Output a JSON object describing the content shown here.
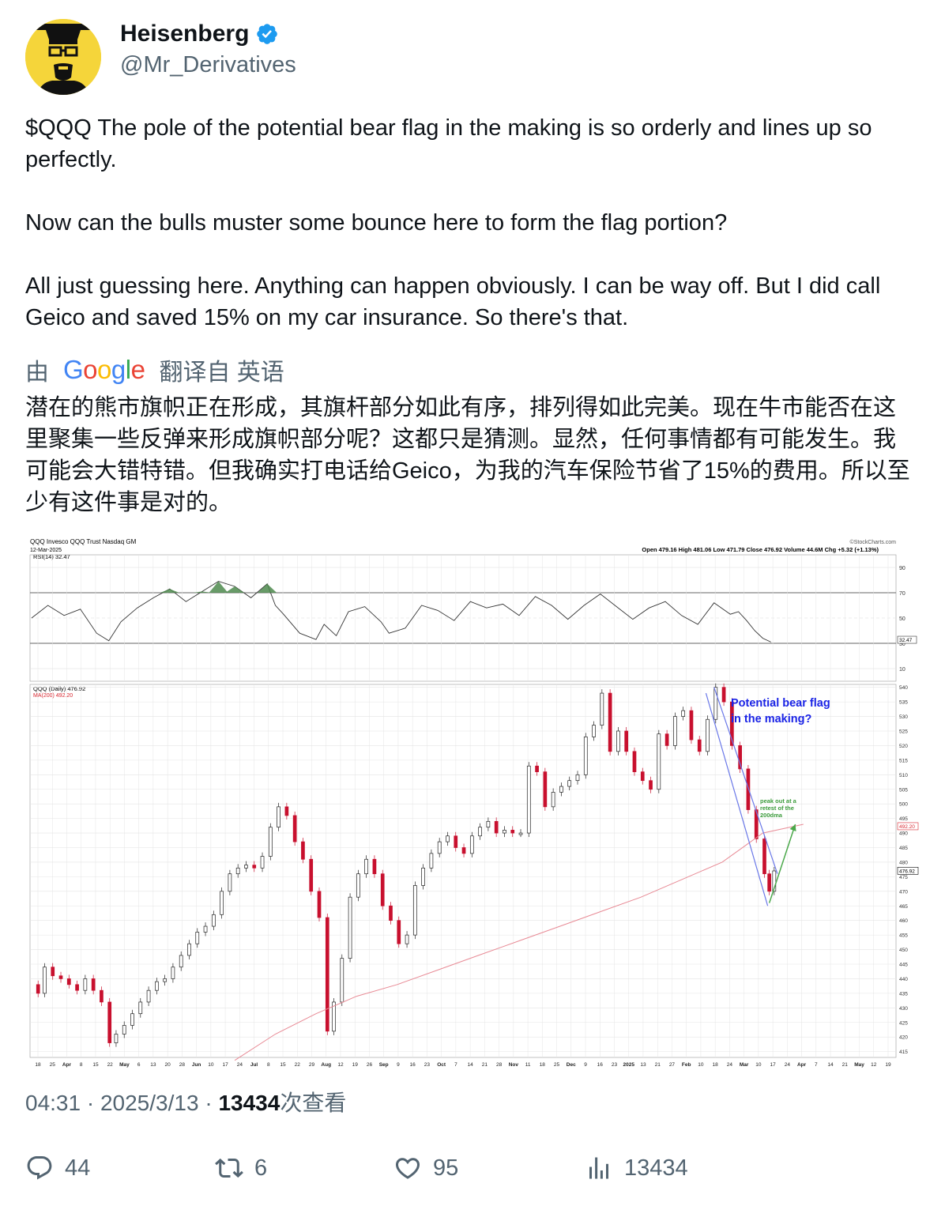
{
  "author": {
    "name": "Heisenberg",
    "handle": "@Mr_Derivatives",
    "verified_icon": "verified-badge-icon",
    "accent": "#1d9bf0"
  },
  "tweet": {
    "p1": "$QQQ The pole of the potential bear flag in the making is so orderly and lines up so perfectly.",
    "p2": "Now can the bulls muster some bounce here to form the flag portion?",
    "p3": "All just guessing here. Anything can happen obviously. I can be way off. But I did call Geico and saved 15% on my car insurance. So there's that."
  },
  "translation": {
    "prefix": "由",
    "provider": "Google",
    "suffix": "翻译自 英语",
    "text": "潜在的熊市旗帜正在形成，其旗杆部分如此有序，排列得如此完美。现在牛市能否在这里聚集一些反弹来形成旗帜部分呢？这都只是猜测。显然，任何事情都有可能发生。我可能会大错特错。但我确实打电话给Geico，为我的汽车保险节省了15%的费用。所以至少有这件事是对的。"
  },
  "meta": {
    "time": "04:31",
    "date": "2025/3/13",
    "views": "13434",
    "views_label": "次查看",
    "sep": "·"
  },
  "actions": {
    "replies": "44",
    "reposts": "6",
    "likes": "95",
    "views": "13434"
  },
  "chart_data": {
    "type": "line",
    "title": "QQQ Invesco QQQ Trust Nasdaq GM",
    "date_label": "12-Mar-2025",
    "source": "©StockCharts.com",
    "ohlc_label": "Open 479.16  High 481.06  Low 471.79  Close 476.92  Volume 44.6M  Chg +5.32 (+1.13%)",
    "rsi_label": "RSI(14) 32.47",
    "price_label": "QQQ (Daily) 476.92",
    "ma_label": "MA(200) 492.20",
    "annotation_main": [
      "Potential bear flag",
      "in the making?"
    ],
    "annotation_small": [
      "peak out at a",
      "retest of the",
      "200dma"
    ],
    "rsi_ticks": [
      "90",
      "70",
      "50",
      "30",
      "10"
    ],
    "rsi_value_tag": "32.47",
    "price_ticks": [
      "540",
      "535",
      "530",
      "525",
      "520",
      "515",
      "510",
      "505",
      "500",
      "495",
      "490",
      "485",
      "480",
      "475",
      "470",
      "465",
      "460",
      "455",
      "450",
      "445",
      "440",
      "435",
      "430",
      "425",
      "420",
      "415"
    ],
    "ma_tag": "492.20",
    "close_tag": "476.92",
    "x_ticks": [
      "18",
      "25",
      "Apr",
      "8",
      "15",
      "22",
      "May",
      "6",
      "13",
      "20",
      "28",
      "Jun",
      "10",
      "17",
      "24",
      "Jul",
      "8",
      "15",
      "22",
      "29",
      "Aug",
      "12",
      "19",
      "26",
      "Sep",
      "9",
      "16",
      "23",
      "Oct",
      "7",
      "14",
      "21",
      "28",
      "Nov",
      "11",
      "18",
      "25",
      "Dec",
      "9",
      "16",
      "23",
      "2025",
      "13",
      "21",
      "27",
      "Feb",
      "10",
      "18",
      "24",
      "Mar",
      "10",
      "17",
      "24",
      "Apr",
      "7",
      "14",
      "21",
      "May",
      "12",
      "19"
    ],
    "ylim": [
      413,
      541
    ],
    "rsi_lim": [
      0,
      100
    ],
    "price_series": [
      [
        0,
        438
      ],
      [
        8,
        435
      ],
      [
        16,
        444
      ],
      [
        26,
        441
      ],
      [
        36,
        440
      ],
      [
        46,
        438
      ],
      [
        56,
        436
      ],
      [
        66,
        440
      ],
      [
        76,
        436
      ],
      [
        86,
        432
      ],
      [
        96,
        418
      ],
      [
        104,
        421
      ],
      [
        114,
        424
      ],
      [
        124,
        428
      ],
      [
        134,
        432
      ],
      [
        144,
        436
      ],
      [
        154,
        439
      ],
      [
        164,
        440
      ],
      [
        174,
        444
      ],
      [
        184,
        448
      ],
      [
        194,
        452
      ],
      [
        204,
        456
      ],
      [
        214,
        458
      ],
      [
        224,
        462
      ],
      [
        234,
        470
      ],
      [
        244,
        476
      ],
      [
        254,
        478
      ],
      [
        264,
        479
      ],
      [
        274,
        478
      ],
      [
        284,
        482
      ],
      [
        294,
        492
      ],
      [
        304,
        499
      ],
      [
        314,
        496
      ],
      [
        324,
        487
      ],
      [
        334,
        481
      ],
      [
        344,
        470
      ],
      [
        354,
        461
      ],
      [
        364,
        422
      ],
      [
        372,
        432
      ],
      [
        382,
        447
      ],
      [
        392,
        468
      ],
      [
        402,
        476
      ],
      [
        412,
        481
      ],
      [
        422,
        476
      ],
      [
        432,
        465
      ],
      [
        442,
        460
      ],
      [
        452,
        452
      ],
      [
        462,
        455
      ],
      [
        472,
        472
      ],
      [
        482,
        478
      ],
      [
        492,
        483
      ],
      [
        502,
        487
      ],
      [
        512,
        489
      ],
      [
        522,
        485
      ],
      [
        532,
        483
      ],
      [
        542,
        489
      ],
      [
        552,
        492
      ],
      [
        562,
        494
      ],
      [
        572,
        490
      ],
      [
        582,
        491
      ],
      [
        592,
        490
      ],
      [
        602,
        490
      ],
      [
        612,
        513
      ],
      [
        622,
        511
      ],
      [
        632,
        499
      ],
      [
        642,
        504
      ],
      [
        652,
        506
      ],
      [
        662,
        508
      ],
      [
        672,
        510
      ],
      [
        682,
        523
      ],
      [
        692,
        527
      ],
      [
        702,
        538
      ],
      [
        712,
        518
      ],
      [
        722,
        525
      ],
      [
        732,
        518
      ],
      [
        742,
        511
      ],
      [
        752,
        508
      ],
      [
        762,
        505
      ],
      [
        772,
        524
      ],
      [
        782,
        520
      ],
      [
        792,
        530
      ],
      [
        802,
        532
      ],
      [
        812,
        522
      ],
      [
        822,
        518
      ],
      [
        832,
        529
      ],
      [
        842,
        540
      ],
      [
        852,
        535
      ],
      [
        862,
        520
      ],
      [
        872,
        512
      ],
      [
        882,
        498
      ],
      [
        892,
        488
      ],
      [
        902,
        476
      ],
      [
        908,
        470
      ],
      [
        914,
        477
      ]
    ],
    "ma_series": [
      [
        250,
        412
      ],
      [
        300,
        421
      ],
      [
        350,
        428
      ],
      [
        400,
        434
      ],
      [
        450,
        438
      ],
      [
        500,
        443
      ],
      [
        550,
        448
      ],
      [
        600,
        453
      ],
      [
        650,
        458
      ],
      [
        700,
        463
      ],
      [
        750,
        468
      ],
      [
        800,
        474
      ],
      [
        850,
        480
      ],
      [
        880,
        486
      ],
      [
        900,
        490
      ],
      [
        950,
        493
      ]
    ],
    "rsi_series": [
      [
        0,
        50
      ],
      [
        20,
        60
      ],
      [
        40,
        52
      ],
      [
        60,
        57
      ],
      [
        80,
        38
      ],
      [
        95,
        32
      ],
      [
        110,
        47
      ],
      [
        130,
        58
      ],
      [
        150,
        66
      ],
      [
        170,
        73
      ],
      [
        190,
        63
      ],
      [
        210,
        71
      ],
      [
        230,
        79
      ],
      [
        250,
        75
      ],
      [
        270,
        66
      ],
      [
        290,
        77
      ],
      [
        300,
        60
      ],
      [
        310,
        53
      ],
      [
        330,
        38
      ],
      [
        350,
        33
      ],
      [
        360,
        45
      ],
      [
        375,
        36
      ],
      [
        390,
        55
      ],
      [
        410,
        59
      ],
      [
        430,
        47
      ],
      [
        440,
        38
      ],
      [
        460,
        42
      ],
      [
        480,
        60
      ],
      [
        500,
        56
      ],
      [
        520,
        48
      ],
      [
        540,
        63
      ],
      [
        560,
        58
      ],
      [
        580,
        61
      ],
      [
        600,
        52
      ],
      [
        620,
        67
      ],
      [
        640,
        60
      ],
      [
        660,
        49
      ],
      [
        680,
        60
      ],
      [
        700,
        69
      ],
      [
        720,
        59
      ],
      [
        740,
        49
      ],
      [
        760,
        58
      ],
      [
        780,
        63
      ],
      [
        800,
        52
      ],
      [
        820,
        45
      ],
      [
        840,
        62
      ],
      [
        860,
        53
      ],
      [
        870,
        55
      ],
      [
        880,
        48
      ],
      [
        890,
        40
      ],
      [
        900,
        34
      ],
      [
        910,
        31
      ]
    ],
    "green_arrow": [
      [
        908,
        466
      ],
      [
        940,
        493
      ]
    ]
  }
}
